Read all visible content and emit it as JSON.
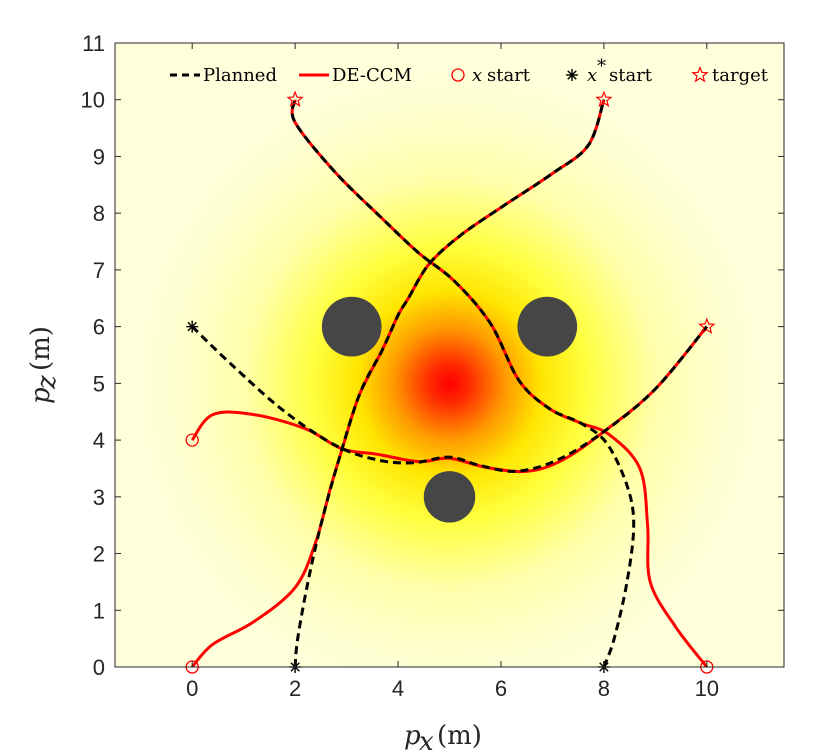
{
  "chart_data": {
    "type": "line",
    "title": "",
    "xlabel": "p_x (m)",
    "xlabel_main": "p",
    "xlabel_sub": "x",
    "xlabel_unit": "(m)",
    "ylabel": "p_z (m)",
    "ylabel_main": "p",
    "ylabel_sub": "z",
    "ylabel_unit": "(m)",
    "xlim": [
      -1.5,
      11.5
    ],
    "ylim": [
      0,
      11
    ],
    "xticks": [
      0,
      2,
      4,
      6,
      8,
      10
    ],
    "yticks": [
      0,
      1,
      2,
      3,
      4,
      5,
      6,
      7,
      8,
      9,
      10,
      11
    ],
    "grid": false,
    "legend_position": "top",
    "legend": [
      {
        "label": "Planned",
        "style": "dashed",
        "color": "#000000"
      },
      {
        "label": "DE-CCM",
        "style": "solid",
        "color": "#ff0000"
      },
      {
        "label": "start",
        "prefix": "x",
        "marker": "circle",
        "color": "#ff0000"
      },
      {
        "label": "start",
        "prefix": "x",
        "prefix_sup": "*",
        "marker": "asterisk",
        "color": "#000000"
      },
      {
        "label": "target",
        "marker": "star",
        "color": "#ff0000"
      }
    ],
    "disturbance_field": {
      "center": [
        5,
        5
      ],
      "description": "radial intensity field",
      "colors": [
        "#ff0000",
        "#ffff00",
        "#ffffdc"
      ]
    },
    "obstacles": [
      {
        "center": [
          3.1,
          6
        ],
        "radius": 0.58
      },
      {
        "center": [
          6.9,
          6
        ],
        "radius": 0.58
      },
      {
        "center": [
          5,
          3
        ],
        "radius": 0.5
      }
    ],
    "series": [
      {
        "name": "Planned",
        "path": 1,
        "points": [
          [
            2,
            0
          ],
          [
            2.05,
            0.5
          ],
          [
            2.25,
            1.5
          ],
          [
            2.5,
            2.5
          ],
          [
            2.8,
            3.5
          ],
          [
            3.25,
            4.8
          ],
          [
            3.7,
            5.6
          ],
          [
            4.0,
            6.2
          ],
          [
            4.2,
            6.5
          ],
          [
            4.6,
            7.1
          ],
          [
            5.2,
            7.6
          ],
          [
            6.0,
            8.1
          ],
          [
            7.0,
            8.7
          ],
          [
            7.7,
            9.2
          ],
          [
            8,
            10
          ]
        ]
      },
      {
        "name": "Planned",
        "path": 2,
        "points": [
          [
            8,
            0
          ],
          [
            8.2,
            0.5
          ],
          [
            8.45,
            1.5
          ],
          [
            8.58,
            2.5
          ],
          [
            8.45,
            3.2
          ],
          [
            8.05,
            3.95
          ],
          [
            7.55,
            4.3
          ],
          [
            6.95,
            4.55
          ],
          [
            6.35,
            5.05
          ],
          [
            5.8,
            6.05
          ],
          [
            5.1,
            6.8
          ],
          [
            4.4,
            7.3
          ],
          [
            3.7,
            7.9
          ],
          [
            2.8,
            8.7
          ],
          [
            2.0,
            9.6
          ],
          [
            2,
            10
          ]
        ]
      },
      {
        "name": "Planned",
        "path": 3,
        "points": [
          [
            0,
            6
          ],
          [
            0.8,
            5.3
          ],
          [
            1.8,
            4.5
          ],
          [
            2.8,
            3.9
          ],
          [
            3.6,
            3.65
          ],
          [
            4.3,
            3.6
          ],
          [
            5.0,
            3.7
          ],
          [
            5.6,
            3.55
          ],
          [
            6.3,
            3.45
          ],
          [
            7.1,
            3.65
          ],
          [
            8.0,
            4.15
          ],
          [
            9.0,
            4.9
          ],
          [
            10,
            6
          ]
        ]
      },
      {
        "name": "DE-CCM",
        "path": 1,
        "points": [
          [
            0,
            0
          ],
          [
            0.4,
            0.4
          ],
          [
            1.2,
            0.8
          ],
          [
            2.0,
            1.4
          ],
          [
            2.4,
            2.2
          ],
          [
            2.7,
            3.2
          ],
          [
            2.95,
            3.95
          ],
          [
            3.25,
            4.8
          ],
          [
            3.7,
            5.6
          ],
          [
            4.0,
            6.2
          ],
          [
            4.2,
            6.5
          ],
          [
            4.6,
            7.1
          ],
          [
            5.2,
            7.6
          ],
          [
            6.0,
            8.1
          ],
          [
            7.0,
            8.7
          ],
          [
            7.7,
            9.2
          ],
          [
            8,
            10
          ]
        ]
      },
      {
        "name": "DE-CCM",
        "path": 2,
        "points": [
          [
            10,
            0
          ],
          [
            9.4,
            0.7
          ],
          [
            8.9,
            1.5
          ],
          [
            8.85,
            2.5
          ],
          [
            8.7,
            3.5
          ],
          [
            8.1,
            4.1
          ],
          [
            7.55,
            4.3
          ],
          [
            6.95,
            4.55
          ],
          [
            6.35,
            5.05
          ],
          [
            5.8,
            6.05
          ],
          [
            5.1,
            6.8
          ],
          [
            4.4,
            7.3
          ],
          [
            3.7,
            7.9
          ],
          [
            2.8,
            8.7
          ],
          [
            2.0,
            9.6
          ],
          [
            2,
            10
          ]
        ]
      },
      {
        "name": "DE-CCM",
        "path": 3,
        "points": [
          [
            0,
            4
          ],
          [
            0.4,
            4.45
          ],
          [
            1.2,
            4.45
          ],
          [
            2.2,
            4.2
          ],
          [
            2.9,
            3.85
          ],
          [
            3.6,
            3.75
          ],
          [
            4.4,
            3.62
          ],
          [
            5.0,
            3.68
          ],
          [
            5.7,
            3.52
          ],
          [
            6.5,
            3.45
          ],
          [
            7.2,
            3.65
          ],
          [
            8.0,
            4.15
          ],
          [
            9.0,
            4.9
          ],
          [
            10,
            6
          ]
        ]
      }
    ],
    "markers": {
      "x_start": [
        [
          0,
          0
        ],
        [
          10,
          0
        ],
        [
          0,
          4
        ]
      ],
      "x_star_start": [
        [
          2,
          0
        ],
        [
          8,
          0
        ],
        [
          0,
          6
        ]
      ],
      "target": [
        [
          2,
          10
        ],
        [
          8,
          10
        ],
        [
          10,
          6
        ]
      ]
    }
  }
}
